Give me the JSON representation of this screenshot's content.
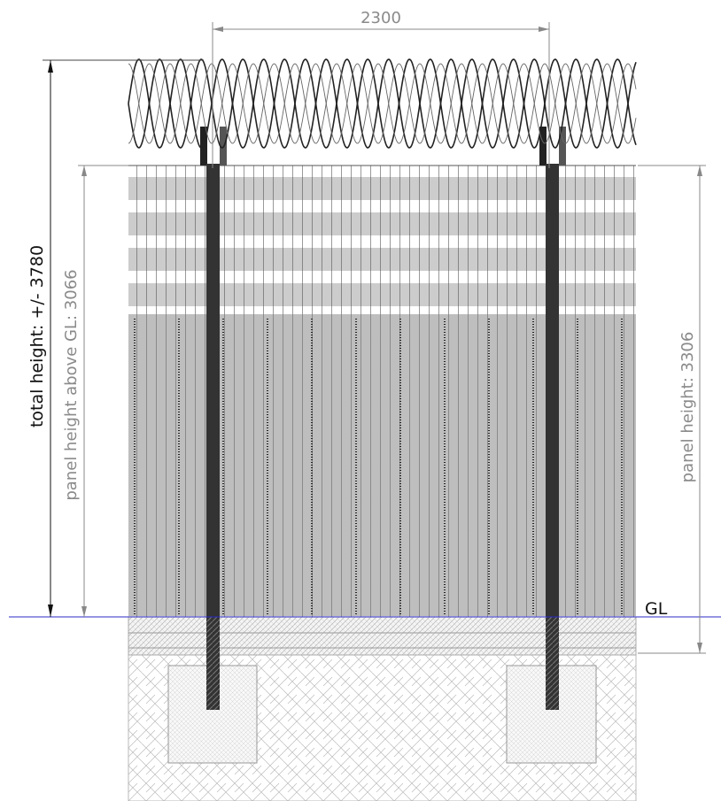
{
  "dimensions": {
    "width": "2300",
    "total_height": "total height: +/- 3780",
    "panel_height_above_gl": "panel height above GL: 3066",
    "panel_height": "panel height: 3306",
    "ground_level": "GL"
  }
}
